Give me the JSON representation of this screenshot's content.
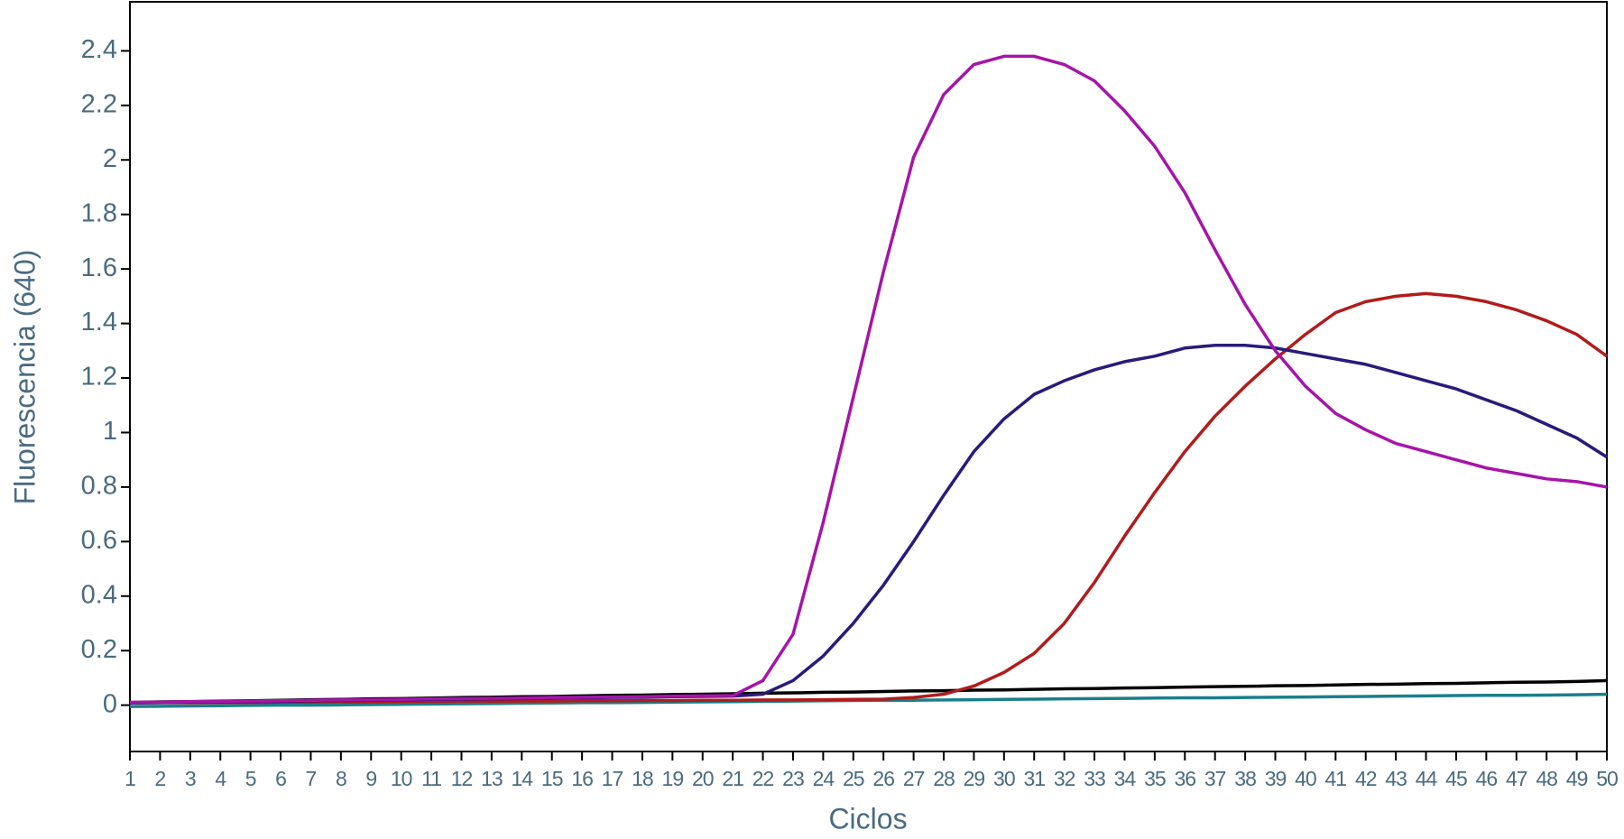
{
  "chart_data": {
    "type": "line",
    "xlabel": "Ciclos",
    "ylabel": "Fluorescencia (640)",
    "x": [
      1,
      2,
      3,
      4,
      5,
      6,
      7,
      8,
      9,
      10,
      11,
      12,
      13,
      14,
      15,
      16,
      17,
      18,
      19,
      20,
      21,
      22,
      23,
      24,
      25,
      26,
      27,
      28,
      29,
      30,
      31,
      32,
      33,
      34,
      35,
      36,
      37,
      38,
      39,
      40,
      41,
      42,
      43,
      44,
      45,
      46,
      47,
      48,
      49,
      50
    ],
    "xlim": [
      1,
      50
    ],
    "xticks": [
      1,
      2,
      3,
      4,
      5,
      6,
      7,
      8,
      9,
      10,
      11,
      12,
      13,
      14,
      15,
      16,
      17,
      18,
      19,
      20,
      21,
      22,
      23,
      24,
      25,
      26,
      27,
      28,
      29,
      30,
      31,
      32,
      33,
      34,
      35,
      36,
      37,
      38,
      39,
      40,
      41,
      42,
      43,
      44,
      45,
      46,
      47,
      48,
      49,
      50
    ],
    "ylim": [
      -0.17,
      2.58
    ],
    "yticks": [
      0,
      0.2,
      0.4,
      0.6,
      0.8,
      1,
      1.2,
      1.4,
      1.6,
      1.8,
      2,
      2.2,
      2.4
    ],
    "series": [
      {
        "color": "#000000",
        "values": [
          0.01,
          0.012,
          0.013,
          0.015,
          0.016,
          0.018,
          0.02,
          0.021,
          0.023,
          0.024,
          0.026,
          0.028,
          0.029,
          0.031,
          0.032,
          0.034,
          0.036,
          0.037,
          0.039,
          0.04,
          0.042,
          0.044,
          0.045,
          0.047,
          0.048,
          0.05,
          0.052,
          0.053,
          0.055,
          0.056,
          0.058,
          0.06,
          0.061,
          0.063,
          0.064,
          0.066,
          0.068,
          0.069,
          0.071,
          0.072,
          0.074,
          0.076,
          0.077,
          0.079,
          0.08,
          0.082,
          0.084,
          0.085,
          0.087,
          0.09
        ]
      },
      {
        "color": "#1a7f8a",
        "values": [
          -0.005,
          -0.004,
          -0.003,
          -0.002,
          -0.001,
          0,
          0,
          0.001,
          0.002,
          0.003,
          0.004,
          0.005,
          0.006,
          0.007,
          0.008,
          0.009,
          0.009,
          0.01,
          0.011,
          0.012,
          0.013,
          0.014,
          0.015,
          0.016,
          0.017,
          0.018,
          0.018,
          0.019,
          0.02,
          0.021,
          0.022,
          0.023,
          0.024,
          0.025,
          0.026,
          0.027,
          0.027,
          0.028,
          0.029,
          0.03,
          0.031,
          0.032,
          0.033,
          0.034,
          0.035,
          0.036,
          0.036,
          0.037,
          0.038,
          0.04
        ]
      },
      {
        "color": "#b01c1c",
        "values": [
          0.008,
          0.009,
          0.009,
          0.01,
          0.01,
          0.011,
          0.011,
          0.012,
          0.012,
          0.013,
          0.013,
          0.014,
          0.014,
          0.015,
          0.015,
          0.016,
          0.016,
          0.017,
          0.017,
          0.018,
          0.018,
          0.019,
          0.019,
          0.02,
          0.021,
          0.022,
          0.028,
          0.04,
          0.07,
          0.12,
          0.19,
          0.3,
          0.45,
          0.62,
          0.78,
          0.93,
          1.06,
          1.17,
          1.27,
          1.36,
          1.44,
          1.48,
          1.5,
          1.51,
          1.5,
          1.48,
          1.45,
          1.41,
          1.36,
          1.28
        ]
      },
      {
        "color": "#2a1a7a",
        "values": [
          0.008,
          0.009,
          0.011,
          0.012,
          0.013,
          0.014,
          0.016,
          0.017,
          0.018,
          0.019,
          0.021,
          0.022,
          0.023,
          0.024,
          0.026,
          0.027,
          0.028,
          0.029,
          0.031,
          0.032,
          0.033,
          0.04,
          0.09,
          0.18,
          0.3,
          0.44,
          0.6,
          0.77,
          0.93,
          1.05,
          1.14,
          1.19,
          1.23,
          1.26,
          1.28,
          1.31,
          1.32,
          1.32,
          1.31,
          1.29,
          1.27,
          1.25,
          1.22,
          1.19,
          1.16,
          1.12,
          1.08,
          1.03,
          0.98,
          0.91
        ]
      },
      {
        "color": "#a614a8",
        "values": [
          0.01,
          0.011,
          0.013,
          0.014,
          0.015,
          0.016,
          0.018,
          0.019,
          0.02,
          0.021,
          0.023,
          0.024,
          0.025,
          0.026,
          0.028,
          0.029,
          0.03,
          0.031,
          0.033,
          0.034,
          0.035,
          0.09,
          0.26,
          0.67,
          1.13,
          1.59,
          2.01,
          2.24,
          2.35,
          2.38,
          2.38,
          2.35,
          2.29,
          2.18,
          2.05,
          1.88,
          1.67,
          1.47,
          1.3,
          1.17,
          1.07,
          1.01,
          0.96,
          0.93,
          0.9,
          0.87,
          0.85,
          0.83,
          0.82,
          0.8
        ]
      }
    ]
  }
}
